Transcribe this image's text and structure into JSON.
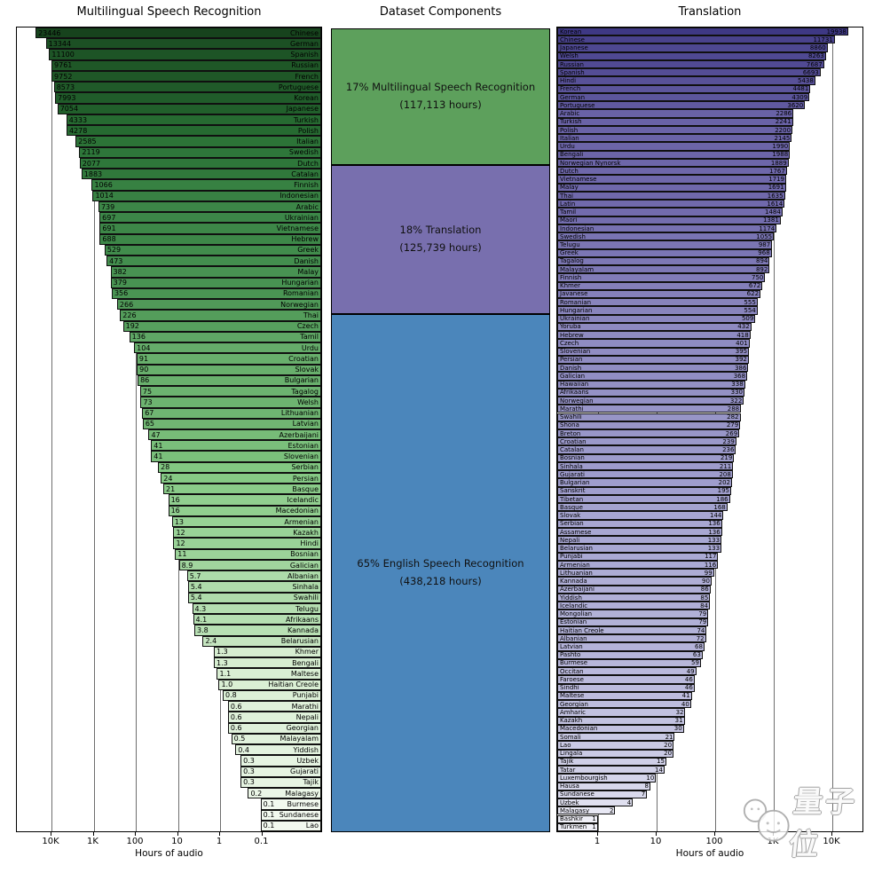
{
  "chart_data": [
    {
      "type": "bar",
      "title": "Multilingual Speech Recognition",
      "orientation": "horizontal",
      "x_scale": "log-reversed",
      "xlabel": "Hours of audio",
      "x_ticks": [
        "10K",
        "1K",
        "100",
        "10",
        "1",
        "0.1"
      ],
      "grid": true,
      "colormap": "greens dark (top) to light (bottom)",
      "categories": [
        "Chinese",
        "German",
        "Spanish",
        "Russian",
        "French",
        "Portuguese",
        "Korean",
        "Japanese",
        "Turkish",
        "Polish",
        "Italian",
        "Swedish",
        "Dutch",
        "Catalan",
        "Finnish",
        "Indonesian",
        "Arabic",
        "Ukrainian",
        "Vietnamese",
        "Hebrew",
        "Greek",
        "Danish",
        "Malay",
        "Hungarian",
        "Romanian",
        "Norwegian",
        "Thai",
        "Czech",
        "Tamil",
        "Urdu",
        "Croatian",
        "Slovak",
        "Bulgarian",
        "Tagalog",
        "Welsh",
        "Lithuanian",
        "Latvian",
        "Azerbaijani",
        "Estonian",
        "Slovenian",
        "Serbian",
        "Persian",
        "Basque",
        "Icelandic",
        "Macedonian",
        "Armenian",
        "Kazakh",
        "Hindi",
        "Bosnian",
        "Galician",
        "Albanian",
        "Sinhala",
        "Swahili",
        "Telugu",
        "Afrikaans",
        "Kannada",
        "Belarusian",
        "Khmer",
        "Bengali",
        "Maltese",
        "Haitian Creole",
        "Punjabi",
        "Marathi",
        "Nepali",
        "Georgian",
        "Malayalam",
        "Yiddish",
        "Uzbek",
        "Gujarati",
        "Tajik",
        "Malagasy",
        "Burmese",
        "Sundanese",
        "Lao"
      ],
      "values": [
        "23446",
        "13344",
        "11100",
        "9761",
        "9752",
        "8573",
        "7993",
        "7054",
        "4333",
        "4278",
        "2585",
        "2119",
        "2077",
        "1883",
        "1066",
        "1014",
        "739",
        "697",
        "691",
        "688",
        "529",
        "473",
        "382",
        "379",
        "356",
        "266",
        "226",
        "192",
        "136",
        "104",
        "91",
        "90",
        "86",
        "75",
        "73",
        "67",
        "65",
        "47",
        "41",
        "41",
        "28",
        "24",
        "21",
        "16",
        "16",
        "13",
        "12",
        "12",
        "11",
        "8.9",
        "5.7",
        "5.4",
        "5.4",
        "4.3",
        "4.1",
        "3.8",
        "2.4",
        "1.3",
        "1.3",
        "1.1",
        "1.0",
        "0.8",
        "0.6",
        "0.6",
        "0.6",
        "0.5",
        "0.4",
        "0.3",
        "0.3",
        "0.3",
        "0.2",
        "0.1",
        "0.1",
        "0.1"
      ]
    },
    {
      "type": "stacked-blocks",
      "title": "Dataset Components",
      "total_note": "percent of dataset with hours",
      "segments": [
        {
          "label": "17% Multilingual Speech Recognition",
          "sublabel": "(117,113 hours)",
          "percent": 17,
          "hours": "117,113",
          "color": "#5da05c"
        },
        {
          "label": "18% Translation",
          "sublabel": "(125,739 hours)",
          "percent": 18,
          "hours": "125,739",
          "color": "#786fae"
        },
        {
          "label": "65% English Speech Recognition",
          "sublabel": "(438,218 hours)",
          "percent": 65,
          "hours": "438,218",
          "color": "#4b86bb"
        }
      ]
    },
    {
      "type": "bar",
      "title": "Translation",
      "orientation": "horizontal",
      "x_scale": "log",
      "xlabel": "Hours of audio",
      "x_ticks": [
        "1",
        "10",
        "100",
        "1K",
        "10K"
      ],
      "grid": true,
      "colormap": "purples dark (top) to light (bottom)",
      "categories": [
        "Korean",
        "Chinese",
        "Japanese",
        "Welsh",
        "Russian",
        "Spanish",
        "Hindi",
        "French",
        "German",
        "Portuguese",
        "Arabic",
        "Turkish",
        "Polish",
        "Italian",
        "Urdu",
        "Bengali",
        "Norwegian Nynorsk",
        "Dutch",
        "Vietnamese",
        "Malay",
        "Thai",
        "Latin",
        "Tamil",
        "Maori",
        "Indonesian",
        "Swedish",
        "Telugu",
        "Greek",
        "Tagalog",
        "Malayalam",
        "Finnish",
        "Khmer",
        "Javanese",
        "Romanian",
        "Hungarian",
        "Ukrainian",
        "Yoruba",
        "Hebrew",
        "Czech",
        "Slovenian",
        "Persian",
        "Danish",
        "Galician",
        "Hawaiian",
        "Afrikaans",
        "Norwegian",
        "Marathi",
        "Swahili",
        "Shona",
        "Breton",
        "Croatian",
        "Catalan",
        "Bosnian",
        "Sinhala",
        "Gujarati",
        "Bulgarian",
        "Sanskrit",
        "Tibetan",
        "Basque",
        "Slovak",
        "Serbian",
        "Assamese",
        "Nepali",
        "Belarusian",
        "Punjabi",
        "Armenian",
        "Lithuanian",
        "Kannada",
        "Azerbaijani",
        "Yiddish",
        "Icelandic",
        "Mongolian",
        "Estonian",
        "Haitian Creole",
        "Albanian",
        "Latvian",
        "Pashto",
        "Burmese",
        "Occitan",
        "Faroese",
        "Sindhi",
        "Maltese",
        "Georgian",
        "Amharic",
        "Kazakh",
        "Macedonian",
        "Somali",
        "Lao",
        "Lingala",
        "Tajik",
        "Tatar",
        "Luxembourgish",
        "Hausa",
        "Sundanese",
        "Uzbek",
        "Malagasy",
        "Bashkir",
        "Turkmen"
      ],
      "values": [
        "19938",
        "11731",
        "8860",
        "8263",
        "7687",
        "6693",
        "5438",
        "4481",
        "4309",
        "3620",
        "2286",
        "2241",
        "2200",
        "2145",
        "1990",
        "1988",
        "1889",
        "1767",
        "1719",
        "1691",
        "1635",
        "1614",
        "1484",
        "1381",
        "1174",
        "1055",
        "987",
        "968",
        "894",
        "892",
        "750",
        "672",
        "622",
        "555",
        "554",
        "509",
        "432",
        "418",
        "401",
        "395",
        "392",
        "386",
        "368",
        "338",
        "330",
        "322",
        "288",
        "282",
        "279",
        "269",
        "239",
        "236",
        "219",
        "211",
        "208",
        "202",
        "195",
        "186",
        "168",
        "144",
        "136",
        "136",
        "133",
        "133",
        "117",
        "116",
        "99",
        "90",
        "86",
        "85",
        "84",
        "79",
        "79",
        "74",
        "72",
        "68",
        "63",
        "59",
        "49",
        "46",
        "46",
        "41",
        "40",
        "32",
        "31",
        "30",
        "21",
        "20",
        "20",
        "15",
        "14",
        "10",
        "8",
        "7",
        "4",
        "2",
        "1",
        "1"
      ]
    }
  ],
  "watermark": {
    "text": "量子位",
    "icon": "two-speech-bubbles"
  }
}
